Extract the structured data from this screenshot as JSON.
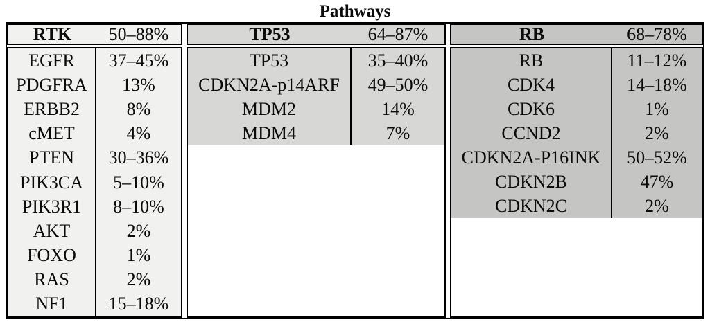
{
  "title": "Pathways",
  "colors": {
    "border": "#000000",
    "rtk_fill": "#f1f1ef",
    "tp53_fill": "#d7d7d5",
    "rb_fill": "#c5c5c3"
  },
  "sections": [
    {
      "name": "RTK",
      "range": "50–88%",
      "color": "#f1f1ef",
      "genes": [
        {
          "gene": "EGFR",
          "pct": "37–45%"
        },
        {
          "gene": "PDGFRA",
          "pct": "13%"
        },
        {
          "gene": "ERBB2",
          "pct": "8%"
        },
        {
          "gene": "cMET",
          "pct": "4%"
        },
        {
          "gene": "PTEN",
          "pct": "30–36%"
        },
        {
          "gene": "PIK3CA",
          "pct": "5–10%"
        },
        {
          "gene": "PIK3R1",
          "pct": "8–10%"
        },
        {
          "gene": "AKT",
          "pct": "2%"
        },
        {
          "gene": "FOXO",
          "pct": "1%"
        },
        {
          "gene": "RAS",
          "pct": "2%"
        },
        {
          "gene": "NF1",
          "pct": "15–18%"
        }
      ]
    },
    {
      "name": "TP53",
      "range": "64–87%",
      "color": "#d7d7d5",
      "genes": [
        {
          "gene": "TP53",
          "pct": "35–40%"
        },
        {
          "gene": "CDKN2A-p14ARF",
          "pct": "49–50%"
        },
        {
          "gene": "MDM2",
          "pct": "14%"
        },
        {
          "gene": "MDM4",
          "pct": "7%"
        }
      ]
    },
    {
      "name": "RB",
      "range": "68–78%",
      "color": "#c5c5c3",
      "genes": [
        {
          "gene": "RB",
          "pct": "11–12%"
        },
        {
          "gene": "CDK4",
          "pct": "14–18%"
        },
        {
          "gene": "CDK6",
          "pct": "1%"
        },
        {
          "gene": "CCND2",
          "pct": "2%"
        },
        {
          "gene": "CDKN2A-P16INK",
          "pct": "50–52%"
        },
        {
          "gene": "CDKN2B",
          "pct": "47%"
        },
        {
          "gene": "CDKN2C",
          "pct": "2%"
        }
      ]
    }
  ]
}
